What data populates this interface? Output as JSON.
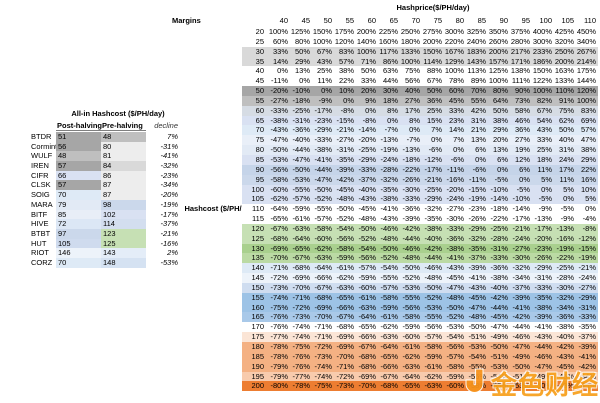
{
  "left_table": {
    "title": "All-in Hashcost ($/PH/day)",
    "col_post": "Post-halving",
    "col_pre": "Pre-halving",
    "col_decline": "decline",
    "rows": [
      {
        "name": "BTDR",
        "post": 51,
        "pre": 48,
        "decline": "7%",
        "post_color": "#A6A6A6",
        "pre_color": "#BFBFBF"
      },
      {
        "name": "Cormint",
        "post": 56,
        "pre": 80,
        "decline": "-31%",
        "post_color": "#A6A6A6",
        "pre_color": "#EDEDED"
      },
      {
        "name": "WULF",
        "post": 48,
        "pre": 81,
        "decline": "-41%",
        "post_color": "#BFBFBF",
        "pre_color": "#EDEDED"
      },
      {
        "name": "IREN",
        "post": 57,
        "pre": 84,
        "decline": "-32%",
        "post_color": "#A6A6A6",
        "pre_color": "#D9D9D9"
      },
      {
        "name": "CIFR",
        "post": 66,
        "pre": 86,
        "decline": "-23%",
        "post_color": "#D9E1F2",
        "pre_color": "#EDEDED"
      },
      {
        "name": "CLSK",
        "post": 57,
        "pre": 87,
        "decline": "-34%",
        "post_color": "#A6A6A6",
        "pre_color": "#EDEDED"
      },
      {
        "name": "SOIG",
        "post": 70,
        "pre": 87,
        "decline": "-20%",
        "post_color": "#DEEAF6",
        "pre_color": "#EDEDED"
      },
      {
        "name": "MARA",
        "post": 79,
        "pre": 98,
        "decline": "-19%",
        "post_color": "#E2EAF5",
        "pre_color": "#CBD8EB"
      },
      {
        "name": "BITF",
        "post": 85,
        "pre": 102,
        "decline": "-17%",
        "post_color": "#E8EEF7",
        "pre_color": "#D9E1F2"
      },
      {
        "name": "HIVE",
        "post": 72,
        "pre": 114,
        "decline": "-37%",
        "post_color": "#DCE7F5",
        "pre_color": "#D3DEEF"
      },
      {
        "name": "BTBT",
        "post": 97,
        "pre": 123,
        "decline": "-21%",
        "post_color": "#CBD8EB",
        "pre_color": "#C6E0B4"
      },
      {
        "name": "HUT",
        "post": 105,
        "pre": 125,
        "decline": "-16%",
        "post_color": "#CFDBEE",
        "pre_color": "#C6E0B4"
      },
      {
        "name": "RIOT",
        "post": 146,
        "pre": 143,
        "decline": "2%",
        "post_color": "#EDF3FA",
        "pre_color": "#E4EDF8"
      },
      {
        "name": "CORZ",
        "post": 70,
        "pre": 148,
        "decline": "-53%",
        "post_color": "#DEEAF6",
        "pre_color": "#D5E2F2"
      }
    ]
  },
  "matrix": {
    "margins_label": "Margins",
    "hashprice_label": "Hashprice($/PH/day)",
    "hashcost_label": "Hashcost ($/PH/day)"
  },
  "watermark": {
    "text": "金色财经",
    "icon": "jinse-logo-icon",
    "color": "#F7941D"
  },
  "chart_data": {
    "type": "heatmap",
    "title": "Margins",
    "xlabel": "Hashprice($/PH/day)",
    "ylabel": "Hashcost ($/PH/day)",
    "value_unit": "%",
    "x": [
      40,
      45,
      50,
      55,
      60,
      65,
      70,
      75,
      80,
      85,
      90,
      95,
      100,
      105,
      110
    ],
    "y": [
      20,
      25,
      30,
      35,
      40,
      45,
      50,
      55,
      60,
      65,
      70,
      75,
      80,
      85,
      90,
      95,
      100,
      105,
      110,
      115,
      120,
      125,
      130,
      135,
      140,
      145,
      150,
      155,
      160,
      165,
      170,
      175,
      180,
      185,
      190,
      195,
      200
    ],
    "row_colors": [
      "#FFFFFF",
      "#FFFFFF",
      "#D9D9D9",
      "#D9D9D9",
      "#FFFFFF",
      "#FFFFFF",
      "#A6A6A6",
      "#BFBFBF",
      "#D6DCE4",
      "#D9E1F2",
      "#DEEAF6",
      "#E9EFF8",
      "#E2EAF5",
      "#D9E1F2",
      "#C5D4E9",
      "#CBD8EB",
      "#D9E1F2",
      "#D9E1F2",
      "#FFFFFF",
      "#FFFFFF",
      "#C6E0B4",
      "#C6E0B4",
      "#A9D08E",
      "#BBDAA4",
      "#DEEAF6",
      "#EDF3FA",
      "#CFDDF0",
      "#9DC3E6",
      "#9DC3E6",
      "#A9C9E9",
      "#FFFFFF",
      "#FBE5D6",
      "#F4B183",
      "#F4B183",
      "#F4B183",
      "#F8CBAD",
      "#ED7D31"
    ],
    "values_pct": [
      [
        100,
        125,
        150,
        175,
        200,
        225,
        250,
        275,
        300,
        325,
        350,
        375,
        400,
        425,
        450
      ],
      [
        60,
        80,
        100,
        120,
        140,
        160,
        180,
        200,
        220,
        240,
        260,
        280,
        300,
        320,
        340
      ],
      [
        33,
        50,
        67,
        83,
        100,
        117,
        133,
        150,
        167,
        183,
        200,
        217,
        233,
        250,
        267
      ],
      [
        14,
        29,
        43,
        57,
        71,
        86,
        100,
        114,
        129,
        143,
        157,
        171,
        186,
        200,
        214
      ],
      [
        0,
        13,
        25,
        38,
        50,
        63,
        75,
        88,
        100,
        113,
        125,
        138,
        150,
        163,
        175
      ],
      [
        -11,
        0,
        11,
        22,
        33,
        44,
        56,
        67,
        78,
        89,
        100,
        111,
        122,
        133,
        144
      ],
      [
        -20,
        -10,
        0,
        10,
        20,
        30,
        40,
        50,
        60,
        70,
        80,
        90,
        100,
        110,
        120
      ],
      [
        -27,
        -18,
        -9,
        0,
        9,
        18,
        27,
        36,
        45,
        55,
        64,
        73,
        82,
        91,
        100
      ],
      [
        -33,
        -25,
        -17,
        -8,
        0,
        8,
        17,
        25,
        33,
        42,
        50,
        58,
        67,
        75,
        83
      ],
      [
        -38,
        -31,
        -23,
        -15,
        -8,
        0,
        8,
        15,
        23,
        31,
        38,
        46,
        54,
        62,
        69
      ],
      [
        -43,
        -36,
        -29,
        -21,
        -14,
        -7,
        0,
        7,
        14,
        21,
        29,
        36,
        43,
        50,
        57
      ],
      [
        -47,
        -40,
        -33,
        -27,
        -20,
        -13,
        -7,
        0,
        7,
        13,
        20,
        27,
        33,
        40,
        47
      ],
      [
        -50,
        -44,
        -38,
        -31,
        -25,
        -19,
        -13,
        -6,
        0,
        6,
        13,
        19,
        25,
        31,
        38
      ],
      [
        -53,
        -47,
        -41,
        -35,
        -29,
        -24,
        -18,
        -12,
        -6,
        0,
        6,
        12,
        18,
        24,
        29
      ],
      [
        -56,
        -50,
        -44,
        -39,
        -33,
        -28,
        -22,
        -17,
        -11,
        -6,
        0,
        6,
        11,
        17,
        22
      ],
      [
        -58,
        -53,
        -47,
        -42,
        -37,
        -32,
        -26,
        -21,
        -16,
        -11,
        -5,
        0,
        5,
        11,
        16
      ],
      [
        -60,
        -55,
        -50,
        -45,
        -40,
        -35,
        -30,
        -25,
        -20,
        -15,
        -10,
        -5,
        0,
        5,
        10
      ],
      [
        -62,
        -57,
        -52,
        -48,
        -43,
        -38,
        -33,
        -29,
        -24,
        -19,
        -14,
        -10,
        -5,
        0,
        5
      ],
      [
        -64,
        -59,
        -55,
        -50,
        -45,
        -41,
        -36,
        -32,
        -27,
        -23,
        -18,
        -14,
        -9,
        -5,
        0
      ],
      [
        -65,
        -61,
        -57,
        -52,
        -48,
        -43,
        -39,
        -35,
        -30,
        -26,
        -22,
        -17,
        -13,
        -9,
        -4
      ],
      [
        -67,
        -63,
        -58,
        -54,
        -50,
        -46,
        -42,
        -38,
        -33,
        -29,
        -25,
        -21,
        -17,
        -13,
        -8
      ],
      [
        -68,
        -64,
        -60,
        -56,
        -52,
        -48,
        -44,
        -40,
        -36,
        -32,
        -28,
        -24,
        -20,
        -16,
        -12
      ],
      [
        -69,
        -65,
        -62,
        -58,
        -54,
        -50,
        -46,
        -42,
        -38,
        -35,
        -31,
        -27,
        -23,
        -19,
        -15
      ],
      [
        -70,
        -67,
        -63,
        -59,
        -56,
        -52,
        -48,
        -44,
        -41,
        -37,
        -33,
        -30,
        -26,
        -22,
        -19
      ],
      [
        -71,
        -68,
        -64,
        -61,
        -57,
        -54,
        -50,
        -46,
        -43,
        -39,
        -36,
        -32,
        -29,
        -25,
        -21
      ],
      [
        -72,
        -69,
        -66,
        -62,
        -59,
        -55,
        -52,
        -48,
        -45,
        -41,
        -38,
        -34,
        -31,
        -28,
        -24
      ],
      [
        -73,
        -70,
        -67,
        -63,
        -60,
        -57,
        -53,
        -50,
        -47,
        -43,
        -40,
        -37,
        -33,
        -30,
        -27
      ],
      [
        -74,
        -71,
        -68,
        -65,
        -61,
        -58,
        -55,
        -52,
        -48,
        -45,
        -42,
        -39,
        -35,
        -32,
        -29
      ],
      [
        -75,
        -72,
        -69,
        -66,
        -63,
        -59,
        -56,
        -53,
        -50,
        -47,
        -44,
        -41,
        -38,
        -34,
        -31
      ],
      [
        -76,
        -73,
        -70,
        -67,
        -64,
        -61,
        -58,
        -55,
        -52,
        -48,
        -45,
        -42,
        -39,
        -36,
        -33
      ],
      [
        -76,
        -74,
        -71,
        -68,
        -65,
        -62,
        -59,
        -56,
        -53,
        -50,
        -47,
        -44,
        -41,
        -38,
        -35
      ],
      [
        -77,
        -74,
        -71,
        -69,
        -66,
        -63,
        -60,
        -57,
        -54,
        -51,
        -49,
        -46,
        -43,
        -40,
        -37
      ],
      [
        -78,
        -75,
        -72,
        -69,
        -67,
        -64,
        -61,
        -58,
        -56,
        -53,
        -50,
        -47,
        -44,
        -42,
        -39
      ],
      [
        -78,
        -76,
        -73,
        -70,
        -68,
        -65,
        -62,
        -59,
        -57,
        -54,
        -51,
        -49,
        -46,
        -43,
        -41
      ],
      [
        -79,
        -76,
        -74,
        -71,
        -68,
        -66,
        -63,
        -61,
        -58,
        -55,
        -53,
        -50,
        -47,
        -45,
        -42
      ],
      [
        -79,
        -77,
        -74,
        -72,
        -69,
        -67,
        -64,
        -62,
        -59,
        -56,
        -54,
        -51,
        -49,
        -46,
        -44
      ],
      [
        -80,
        -78,
        -75,
        -73,
        -70,
        -68,
        -65,
        -63,
        -60,
        -58,
        -55,
        -53,
        -50,
        -48,
        -45
      ]
    ]
  }
}
